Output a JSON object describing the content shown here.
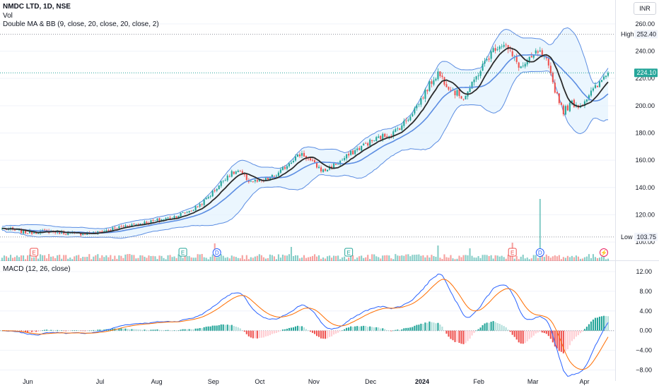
{
  "header": {
    "title": "NMDC LTD, 1D, NSE",
    "volume_label": "Vol",
    "indicator_label": "Double MA & BB (9, close, 20, close, 20, close, 2)",
    "currency_button": "INR",
    "macd_label": "MACD (12, 26, close)"
  },
  "colors": {
    "up": "#26a69a",
    "down": "#ef5350",
    "fast_ma": "#2b2b2b",
    "slow_ma": "#5b8de2",
    "band_fill": "#e3f2fd",
    "band_line": "#5b8de2",
    "macd_line": "#2962ff",
    "signal_line": "#ff6d00",
    "price_tag": "#26a69a"
  },
  "chart_data": [
    {
      "type": "candlestick",
      "symbol": "NMDC LTD",
      "interval": "1D",
      "exchange": "NSE",
      "currency": "INR",
      "price_axis_ticks": [
        "100.00",
        "120.00",
        "140.00",
        "160.00",
        "180.00",
        "200.00",
        "220.00",
        "240.00",
        "260.00"
      ],
      "price_axis_values": [
        100,
        120,
        140,
        160,
        180,
        200,
        220,
        240,
        260
      ],
      "ylim": [
        99,
        262
      ],
      "x_axis_labels": [
        "Jun",
        "Jul",
        "Aug",
        "Sep",
        "Oct",
        "Nov",
        "Dec",
        "2024",
        "Feb",
        "Mar",
        "Apr"
      ],
      "high_label": "High",
      "high_value": "252.40",
      "low_label": "Low",
      "low_value": "103.75",
      "last_price": "224.10",
      "close_anchors": [
        {
          "i": 0,
          "v": 110
        },
        {
          "i": 12,
          "v": 107
        },
        {
          "i": 22,
          "v": 108
        },
        {
          "i": 35,
          "v": 106
        },
        {
          "i": 45,
          "v": 107
        },
        {
          "i": 58,
          "v": 112
        },
        {
          "i": 70,
          "v": 115
        },
        {
          "i": 80,
          "v": 118
        },
        {
          "i": 90,
          "v": 124
        },
        {
          "i": 95,
          "v": 130
        },
        {
          "i": 100,
          "v": 138
        },
        {
          "i": 106,
          "v": 149
        },
        {
          "i": 111,
          "v": 152
        },
        {
          "i": 116,
          "v": 145
        },
        {
          "i": 122,
          "v": 144
        },
        {
          "i": 130,
          "v": 150
        },
        {
          "i": 136,
          "v": 160
        },
        {
          "i": 141,
          "v": 165
        },
        {
          "i": 146,
          "v": 158
        },
        {
          "i": 151,
          "v": 152
        },
        {
          "i": 158,
          "v": 158
        },
        {
          "i": 165,
          "v": 166
        },
        {
          "i": 171,
          "v": 172
        },
        {
          "i": 178,
          "v": 177
        },
        {
          "i": 184,
          "v": 180
        },
        {
          "i": 190,
          "v": 189
        },
        {
          "i": 196,
          "v": 202
        },
        {
          "i": 202,
          "v": 218
        },
        {
          "i": 205,
          "v": 224
        },
        {
          "i": 209,
          "v": 216
        },
        {
          "i": 213,
          "v": 210
        },
        {
          "i": 217,
          "v": 206
        },
        {
          "i": 221,
          "v": 215
        },
        {
          "i": 224,
          "v": 224
        },
        {
          "i": 228,
          "v": 234
        },
        {
          "i": 232,
          "v": 243
        },
        {
          "i": 236,
          "v": 246
        },
        {
          "i": 240,
          "v": 236
        },
        {
          "i": 244,
          "v": 228
        },
        {
          "i": 248,
          "v": 233
        },
        {
          "i": 252,
          "v": 240
        },
        {
          "i": 256,
          "v": 232
        },
        {
          "i": 260,
          "v": 212
        },
        {
          "i": 264,
          "v": 196
        },
        {
          "i": 268,
          "v": 202
        },
        {
          "i": 272,
          "v": 200
        },
        {
          "i": 276,
          "v": 208
        },
        {
          "i": 281,
          "v": 216
        },
        {
          "i": 284,
          "v": 224
        }
      ],
      "volume_ylim": [
        0,
        100
      ],
      "volume_base": 10,
      "volume_spikes": [
        {
          "i": 100,
          "v": 25
        },
        {
          "i": 136,
          "v": 20
        },
        {
          "i": 205,
          "v": 22
        },
        {
          "i": 240,
          "v": 26
        },
        {
          "i": 253,
          "v": 88
        },
        {
          "i": 220,
          "v": 18
        }
      ],
      "event_markers": [
        {
          "i": 15,
          "text": "E"
        },
        {
          "i": 85,
          "text": "E"
        },
        {
          "i": 101,
          "text": "D"
        },
        {
          "i": 163,
          "text": "E"
        },
        {
          "i": 240,
          "text": "E"
        },
        {
          "i": 253,
          "text": "D"
        },
        {
          "i": 283,
          "text": "⚡"
        }
      ]
    },
    {
      "type": "macd",
      "label": "MACD (12, 26, close)",
      "ylim": [
        -9.5,
        13
      ],
      "y_axis_ticks": [
        "12.00",
        "8.00",
        "4.00",
        "0.00",
        "−4.00",
        "−8.00"
      ],
      "y_axis_values": [
        12,
        8,
        4,
        0,
        -4,
        -8
      ]
    }
  ]
}
